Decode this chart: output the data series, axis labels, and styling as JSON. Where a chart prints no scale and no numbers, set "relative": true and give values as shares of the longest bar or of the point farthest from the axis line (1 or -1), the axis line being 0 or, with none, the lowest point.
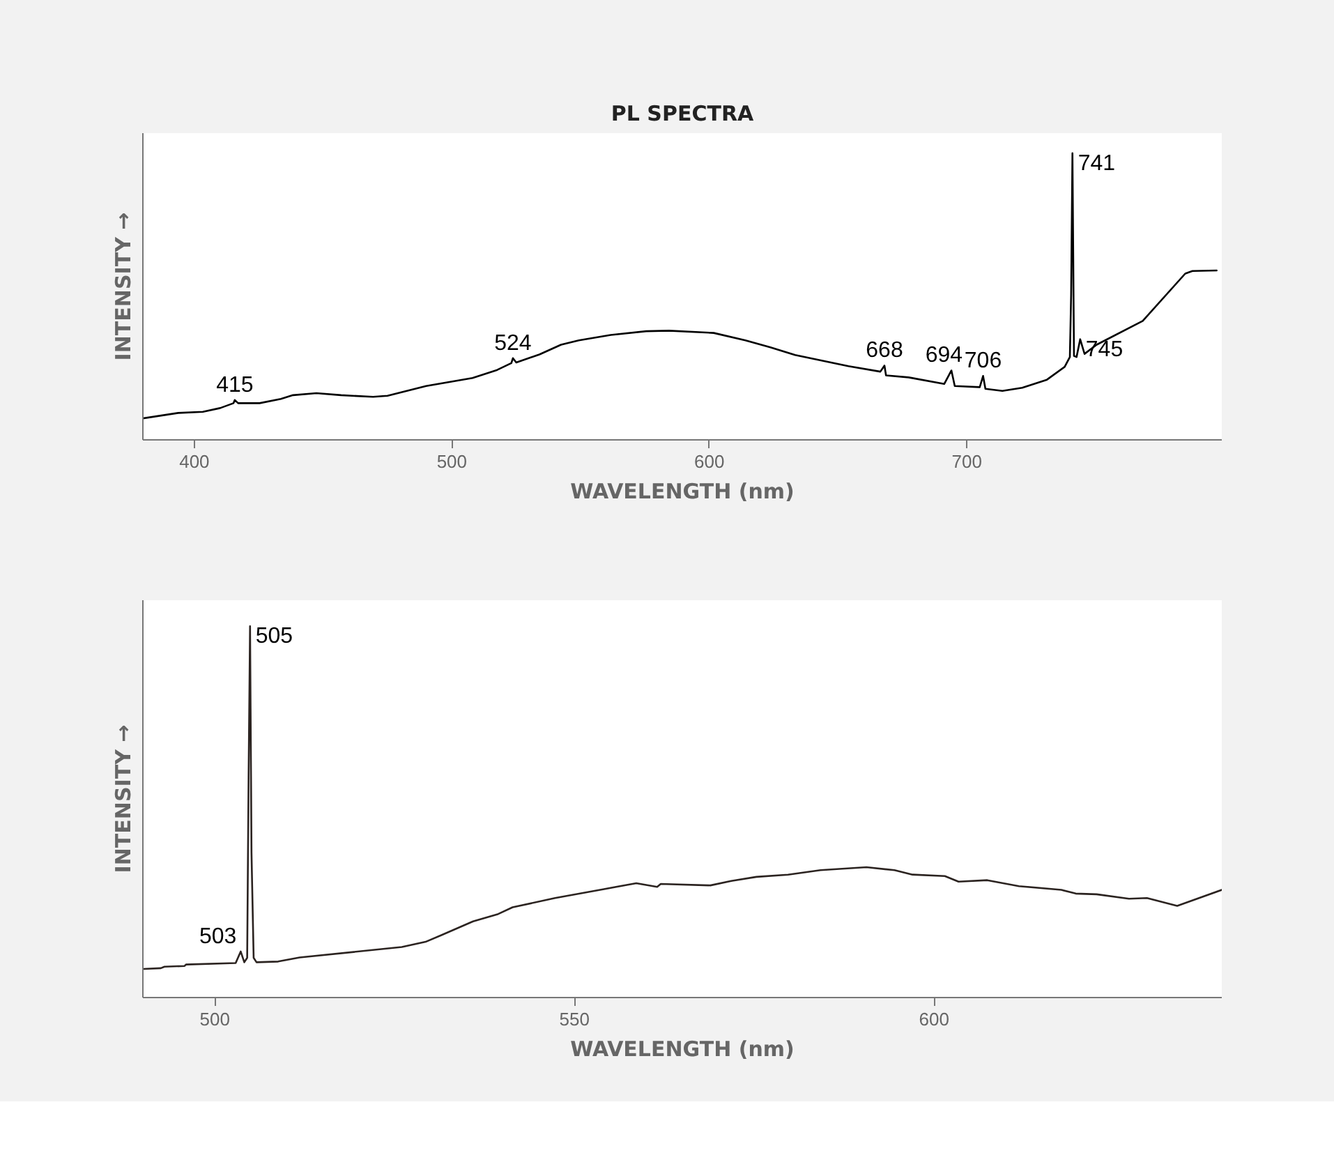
{
  "chart_data": [
    {
      "type": "line",
      "title": "PL SPECTRA",
      "xlabel": "WAVELENGTH (nm)",
      "ylabel": "INTENSITY →",
      "relative": true,
      "xlim": [
        380,
        799
      ],
      "xticks": [
        400,
        500,
        600,
        700
      ],
      "line_style": "solid",
      "series": [
        {
          "color": "#000000",
          "x": [
            380,
            393.7,
            403.3,
            410,
            415.2,
            415.7,
            417,
            425.3,
            433.6,
            438.3,
            447.4,
            457,
            469.4,
            475,
            490,
            508,
            517.6,
            523.1,
            523.7,
            525,
            534,
            542.4,
            549.3,
            561.7,
            575.5,
            584.3,
            601.7,
            614,
            623.7,
            633.3,
            654,
            666.4,
            668,
            668.6,
            677.4,
            691.2,
            694,
            695.3,
            705,
            706.3,
            707.2,
            713.8,
            721.5,
            731.1,
            738,
            740,
            740.5,
            741,
            741.6,
            742.6,
            744,
            745.7,
            750.4,
            768.3,
            784.8,
            787.6,
            797
          ],
          "values": [
            0.075,
            0.094,
            0.098,
            0.111,
            0.128,
            0.139,
            0.128,
            0.128,
            0.143,
            0.156,
            0.163,
            0.156,
            0.15,
            0.154,
            0.188,
            0.216,
            0.244,
            0.268,
            0.285,
            0.27,
            0.298,
            0.332,
            0.347,
            0.366,
            0.379,
            0.381,
            0.373,
            0.347,
            0.323,
            0.296,
            0.257,
            0.238,
            0.259,
            0.225,
            0.218,
            0.195,
            0.242,
            0.188,
            0.184,
            0.223,
            0.178,
            0.171,
            0.182,
            0.21,
            0.255,
            0.289,
            0.507,
            1.0,
            0.293,
            0.289,
            0.351,
            0.3,
            0.332,
            0.415,
            0.58,
            0.589,
            0.591
          ]
        }
      ],
      "annotations": [
        {
          "text": "415",
          "x": 415.7,
          "y": 0.139
        },
        {
          "text": "524",
          "x": 523.7,
          "y": 0.285
        },
        {
          "text": "668",
          "x": 668,
          "y": 0.259
        },
        {
          "text": "694",
          "x": 694,
          "y": 0.242
        },
        {
          "text": "706",
          "x": 706.3,
          "y": 0.223
        },
        {
          "text": "741",
          "x": 741,
          "y": 1.0
        },
        {
          "text": "745",
          "x": 744,
          "y": 0.351
        }
      ]
    },
    {
      "type": "line",
      "xlabel": "WAVELENGTH (nm)",
      "ylabel": "INTENSITY →",
      "relative": true,
      "xlim": [
        490,
        640
      ],
      "xticks": [
        500,
        550,
        600
      ],
      "line_style": "solid",
      "series": [
        {
          "color": "#2b2320",
          "x": [
            490,
            492.5,
            493,
            495.8,
            496,
            502.9,
            503.6,
            504.1,
            504.5,
            504.7,
            504.9,
            505.1,
            505.4,
            505.8,
            508.8,
            511.8,
            526,
            529.3,
            531.5,
            535.9,
            539.4,
            541.4,
            547.3,
            554.1,
            558.6,
            561.5,
            562,
            568.9,
            571.8,
            575.3,
            579.7,
            584.2,
            590.6,
            594.5,
            597,
            601.5,
            603.4,
            607.4,
            611.8,
            617.7,
            619.7,
            622.6,
            627.1,
            629.6,
            633.8,
            640
          ],
          "values": [
            0.077,
            0.079,
            0.083,
            0.085,
            0.089,
            0.093,
            0.124,
            0.095,
            0.107,
            0.594,
            1.0,
            0.391,
            0.107,
            0.095,
            0.097,
            0.108,
            0.136,
            0.15,
            0.168,
            0.205,
            0.225,
            0.243,
            0.268,
            0.292,
            0.308,
            0.298,
            0.306,
            0.302,
            0.314,
            0.325,
            0.331,
            0.343,
            0.351,
            0.343,
            0.331,
            0.327,
            0.312,
            0.316,
            0.3,
            0.29,
            0.28,
            0.278,
            0.266,
            0.268,
            0.247,
            0.29
          ]
        }
      ],
      "annotations": [
        {
          "text": "503",
          "x": 503.6,
          "y": 0.124
        },
        {
          "text": "505",
          "x": 504.9,
          "y": 1.0
        }
      ]
    }
  ]
}
